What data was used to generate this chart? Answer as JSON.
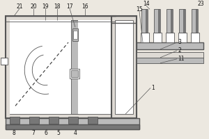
{
  "bg_color": "#ece8e0",
  "lc": "#555555",
  "dg": "#777777",
  "mg": "#999999",
  "lg": "#bbbbbb",
  "white": "#ffffff",
  "tank_fc": "#dedad4",
  "fig_w": 3.0,
  "fig_h": 2.0,
  "dpi": 100
}
